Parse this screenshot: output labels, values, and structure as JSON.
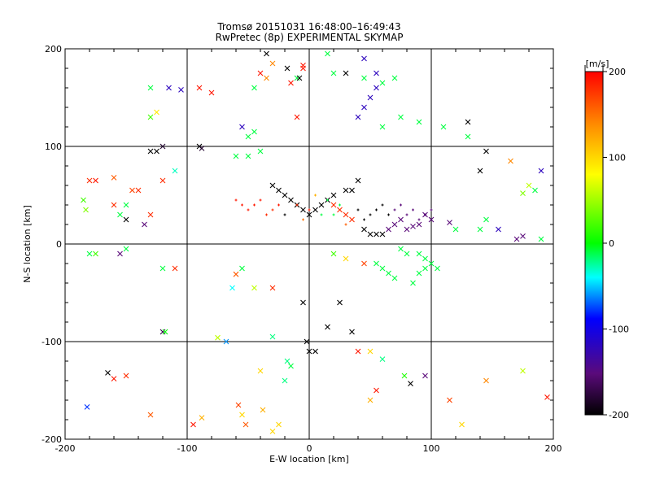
{
  "chart_data": {
    "type": "scatter",
    "title": "Tromsø 20151031 16:48:00–16:49:43",
    "subtitle": "RwPretec (8p) EXPERIMENTAL SKYMAP",
    "xlabel": "E-W location [km]",
    "ylabel": "N-S location [km]",
    "xlim": [
      -200,
      200
    ],
    "ylim": [
      -200,
      200
    ],
    "xticks": [
      "-200",
      "-100",
      "0",
      "100",
      "200"
    ],
    "yticks": [
      "-200",
      "-100",
      "0",
      "100",
      "200"
    ],
    "grid": true,
    "colorbar": {
      "label": "[m/s]",
      "range": [
        -200,
        200
      ],
      "ticks": [
        "200",
        "100",
        "0",
        "-100",
        "-200"
      ],
      "colormap": [
        "#000000",
        "#5a0a7a",
        "#0000ff",
        "#00ffff",
        "#00ff00",
        "#ffff00",
        "#ff8800",
        "#ff0000"
      ]
    },
    "series": [
      {
        "marker": "x",
        "points": [
          [
            -182,
            -167,
            -80
          ],
          [
            -165,
            -132,
            -200
          ],
          [
            -150,
            -135,
            180
          ],
          [
            -160,
            -138,
            190
          ],
          [
            -130,
            -175,
            160
          ],
          [
            -120,
            -90,
            -170
          ],
          [
            -118,
            -90,
            0
          ],
          [
            -95,
            -185,
            190
          ],
          [
            -88,
            -178,
            120
          ],
          [
            -75,
            -96,
            60
          ],
          [
            -68,
            -100,
            -60
          ],
          [
            -63,
            -45,
            -40
          ],
          [
            -60,
            -31,
            160
          ],
          [
            -58,
            -165,
            170
          ],
          [
            -55,
            -175,
            100
          ],
          [
            -52,
            -185,
            160
          ],
          [
            -45,
            -45,
            60
          ],
          [
            -30,
            -45,
            180
          ],
          [
            -30,
            -95,
            -20
          ],
          [
            -40,
            -130,
            100
          ],
          [
            -38,
            -170,
            120
          ],
          [
            -20,
            -140,
            -20
          ],
          [
            -18,
            -120,
            -20
          ],
          [
            -15,
            -125,
            -10
          ],
          [
            -25,
            -185,
            100
          ],
          [
            -30,
            -192,
            100
          ],
          [
            20,
            -10,
            20
          ],
          [
            30,
            -15,
            100
          ],
          [
            45,
            -20,
            170
          ],
          [
            25,
            -60,
            -200
          ],
          [
            15,
            -85,
            -200
          ],
          [
            35,
            -90,
            -200
          ],
          [
            40,
            -110,
            190
          ],
          [
            50,
            -110,
            100
          ],
          [
            55,
            -150,
            190
          ],
          [
            60,
            -118,
            -20
          ],
          [
            50,
            -160,
            120
          ],
          [
            78,
            -135,
            10
          ],
          [
            83,
            -143,
            -200
          ],
          [
            95,
            -135,
            -150
          ],
          [
            115,
            -160,
            170
          ],
          [
            125,
            -185,
            100
          ],
          [
            145,
            -140,
            140
          ],
          [
            175,
            -130,
            60
          ],
          [
            195,
            -157,
            190
          ],
          [
            -120,
            -25,
            -10
          ],
          [
            -110,
            -25,
            180
          ],
          [
            -155,
            -10,
            -150
          ],
          [
            -180,
            -10,
            -10
          ],
          [
            -150,
            -5,
            -10
          ],
          [
            -175,
            -10,
            20
          ],
          [
            -150,
            25,
            -200
          ],
          [
            -160,
            40,
            180
          ],
          [
            -145,
            55,
            170
          ],
          [
            -140,
            55,
            180
          ],
          [
            -160,
            68,
            160
          ],
          [
            -150,
            40,
            -10
          ],
          [
            -155,
            30,
            -10
          ],
          [
            -130,
            30,
            180
          ],
          [
            -120,
            65,
            180
          ],
          [
            -110,
            75,
            -30
          ],
          [
            -180,
            65,
            180
          ],
          [
            -175,
            65,
            190
          ],
          [
            -185,
            45,
            20
          ],
          [
            -183,
            35,
            40
          ],
          [
            -135,
            20,
            -150
          ],
          [
            -130,
            95,
            -200
          ],
          [
            -125,
            95,
            -200
          ],
          [
            -120,
            100,
            -180
          ],
          [
            -90,
            100,
            -200
          ],
          [
            -88,
            98,
            -180
          ],
          [
            -60,
            90,
            -10
          ],
          [
            -50,
            90,
            -10
          ],
          [
            -40,
            95,
            -10
          ],
          [
            -55,
            -25,
            -10
          ],
          [
            -130,
            130,
            20
          ],
          [
            -125,
            135,
            90
          ],
          [
            -130,
            160,
            -10
          ],
          [
            -115,
            160,
            -120
          ],
          [
            -105,
            158,
            -120
          ],
          [
            -90,
            160,
            190
          ],
          [
            -80,
            155,
            190
          ],
          [
            -55,
            120,
            -120
          ],
          [
            -50,
            110,
            -10
          ],
          [
            -45,
            115,
            -10
          ],
          [
            -10,
            130,
            190
          ],
          [
            -10,
            170,
            -10
          ],
          [
            -8,
            170,
            -200
          ],
          [
            -15,
            165,
            190
          ],
          [
            -18,
            180,
            -200
          ],
          [
            -5,
            180,
            190
          ],
          [
            -5,
            183,
            190
          ],
          [
            -30,
            185,
            140
          ],
          [
            -35,
            170,
            140
          ],
          [
            -40,
            175,
            190
          ],
          [
            -45,
            160,
            -10
          ],
          [
            -35,
            195,
            -200
          ],
          [
            15,
            195,
            -10
          ],
          [
            45,
            190,
            -120
          ],
          [
            55,
            175,
            -120
          ],
          [
            60,
            165,
            -10
          ],
          [
            70,
            170,
            -10
          ],
          [
            20,
            175,
            -10
          ],
          [
            30,
            175,
            -200
          ],
          [
            40,
            130,
            -120
          ],
          [
            45,
            140,
            -120
          ],
          [
            50,
            150,
            -120
          ],
          [
            55,
            160,
            -120
          ],
          [
            45,
            170,
            -10
          ],
          [
            60,
            120,
            -10
          ],
          [
            75,
            130,
            -10
          ],
          [
            90,
            125,
            -10
          ],
          [
            110,
            120,
            -10
          ],
          [
            130,
            110,
            -10
          ],
          [
            130,
            125,
            -200
          ],
          [
            145,
            95,
            -200
          ],
          [
            140,
            75,
            -200
          ],
          [
            165,
            85,
            140
          ],
          [
            175,
            52,
            40
          ],
          [
            180,
            60,
            60
          ],
          [
            190,
            75,
            -120
          ],
          [
            185,
            55,
            -10
          ],
          [
            190,
            5,
            -10
          ],
          [
            175,
            8,
            -150
          ],
          [
            170,
            5,
            -150
          ],
          [
            155,
            15,
            -120
          ],
          [
            145,
            25,
            -10
          ],
          [
            140,
            15,
            -10
          ],
          [
            120,
            15,
            -10
          ],
          [
            115,
            22,
            -150
          ],
          [
            100,
            25,
            -150
          ],
          [
            95,
            30,
            -150
          ],
          [
            90,
            20,
            -150
          ],
          [
            85,
            18,
            -150
          ],
          [
            80,
            15,
            -150
          ],
          [
            75,
            25,
            -150
          ],
          [
            70,
            20,
            -150
          ],
          [
            65,
            15,
            -150
          ],
          [
            60,
            10,
            -200
          ],
          [
            55,
            10,
            -200
          ],
          [
            50,
            10,
            -200
          ],
          [
            45,
            15,
            -200
          ],
          [
            35,
            25,
            180
          ],
          [
            30,
            30,
            180
          ],
          [
            25,
            35,
            180
          ],
          [
            20,
            40,
            180
          ],
          [
            40,
            65,
            -200
          ],
          [
            35,
            55,
            -200
          ],
          [
            30,
            55,
            -200
          ],
          [
            20,
            50,
            -200
          ],
          [
            15,
            45,
            -200
          ],
          [
            10,
            40,
            -200
          ],
          [
            5,
            35,
            -200
          ],
          [
            0,
            30,
            -200
          ],
          [
            -5,
            35,
            -200
          ],
          [
            -10,
            40,
            -200
          ],
          [
            -15,
            45,
            -200
          ],
          [
            -20,
            50,
            -200
          ],
          [
            -25,
            55,
            -200
          ],
          [
            -30,
            60,
            -200
          ],
          [
            -5,
            -60,
            -200
          ],
          [
            -2,
            -100,
            -200
          ],
          [
            0,
            -110,
            -200
          ],
          [
            5,
            -110,
            -200
          ],
          [
            85,
            -40,
            -10
          ],
          [
            90,
            -30,
            -10
          ],
          [
            95,
            -25,
            -10
          ],
          [
            70,
            -35,
            -10
          ],
          [
            65,
            -30,
            -10
          ],
          [
            60,
            -25,
            -10
          ],
          [
            55,
            -20,
            -10
          ],
          [
            80,
            -10,
            -10
          ],
          [
            75,
            -5,
            -10
          ],
          [
            90,
            -10,
            -10
          ],
          [
            95,
            -15,
            -10
          ],
          [
            100,
            -20,
            -10
          ],
          [
            105,
            -25,
            -10
          ]
        ]
      },
      {
        "marker": "plus",
        "points": [
          [
            -20,
            30,
            -200
          ],
          [
            -10,
            40,
            180
          ],
          [
            0,
            35,
            190
          ],
          [
            10,
            30,
            -10
          ],
          [
            15,
            45,
            -10
          ],
          [
            20,
            30,
            -10
          ],
          [
            25,
            40,
            -10
          ],
          [
            -25,
            40,
            190
          ],
          [
            -30,
            35,
            180
          ],
          [
            -35,
            30,
            180
          ],
          [
            -40,
            45,
            190
          ],
          [
            -45,
            40,
            190
          ],
          [
            -50,
            35,
            190
          ],
          [
            -55,
            40,
            190
          ],
          [
            -60,
            45,
            190
          ],
          [
            5,
            50,
            120
          ],
          [
            -5,
            25,
            150
          ],
          [
            30,
            20,
            160
          ],
          [
            40,
            35,
            -200
          ],
          [
            45,
            25,
            -200
          ],
          [
            50,
            30,
            -200
          ],
          [
            55,
            35,
            -200
          ],
          [
            60,
            40,
            -200
          ],
          [
            65,
            30,
            -200
          ],
          [
            70,
            35,
            -150
          ],
          [
            75,
            40,
            -150
          ],
          [
            80,
            30,
            -150
          ],
          [
            85,
            35,
            -150
          ],
          [
            90,
            25,
            -150
          ],
          [
            95,
            30,
            -150
          ],
          [
            100,
            35,
            -150
          ]
        ]
      }
    ]
  }
}
